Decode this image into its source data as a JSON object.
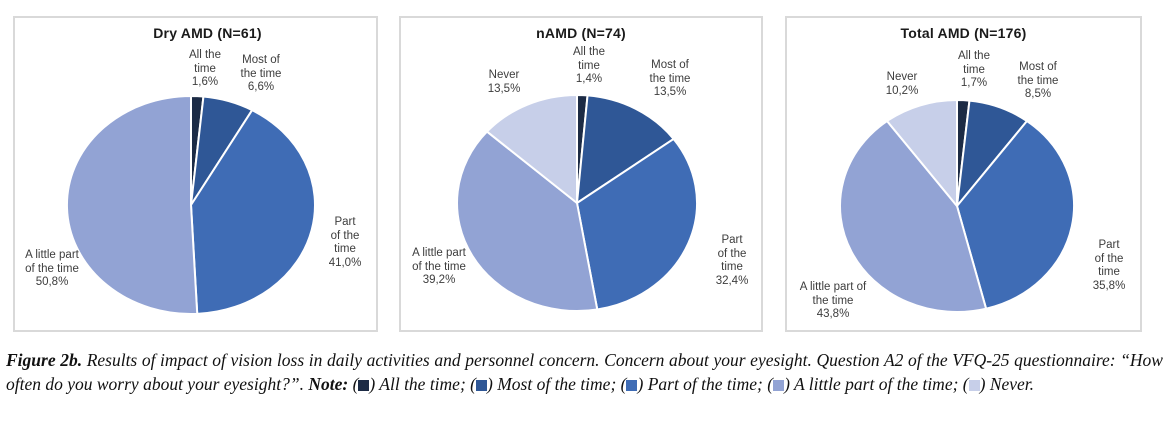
{
  "chart_data": [
    {
      "type": "pie",
      "title": "Dry AMD (N=61)",
      "unit": "%",
      "start_angle_deg": 0,
      "direction": "clockwise",
      "slices": [
        {
          "name": "All the time",
          "value": 1.6,
          "label": "All the\ntime\n1,6%",
          "color": "#1c2b45"
        },
        {
          "name": "Most of the time",
          "value": 6.6,
          "label": "Most of\nthe time\n6,6%",
          "color": "#2f5796"
        },
        {
          "name": "Part of the time",
          "value": 41.0,
          "label": "Part of the\ntime\n41,0%",
          "color": "#3f6cb5"
        },
        {
          "name": "A little part of the time",
          "value": 50.8,
          "label": "A little part\nof the time\n50,8%",
          "color": "#92a3d4"
        }
      ]
    },
    {
      "type": "pie",
      "title": "nAMD (N=74)",
      "unit": "%",
      "start_angle_deg": 0,
      "direction": "clockwise",
      "slices": [
        {
          "name": "All the time",
          "value": 1.4,
          "label": "All the\ntime\n1,4%",
          "color": "#1c2b45"
        },
        {
          "name": "Most of the time",
          "value": 13.5,
          "label": "Most of\nthe time\n13,5%",
          "color": "#2f5796"
        },
        {
          "name": "Part of the time",
          "value": 32.4,
          "label": "Part of the\ntime\n32,4%",
          "color": "#3f6cb5"
        },
        {
          "name": "A little part of the time",
          "value": 39.2,
          "label": "A little part\nof the time\n39,2%",
          "color": "#92a3d4"
        },
        {
          "name": "Never",
          "value": 13.5,
          "label": "Never\n13,5%",
          "color": "#c7cfe9"
        }
      ]
    },
    {
      "type": "pie",
      "title": "Total AMD (N=176)",
      "unit": "%",
      "start_angle_deg": 0,
      "direction": "clockwise",
      "slices": [
        {
          "name": "All the time",
          "value": 1.7,
          "label": "All the\ntime\n1,7%",
          "color": "#1c2b45"
        },
        {
          "name": "Most of the time",
          "value": 8.5,
          "label": "Most of\nthe time\n8,5%",
          "color": "#2f5796"
        },
        {
          "name": "Part of the time",
          "value": 35.8,
          "label": "Part of the\ntime\n35,8%",
          "color": "#3f6cb5"
        },
        {
          "name": "A little part of the time",
          "value": 43.8,
          "label": "A little part of\nthe time\n43,8%",
          "color": "#92a3d4"
        },
        {
          "name": "Never",
          "value": 10.2,
          "label": "Never\n10,2%",
          "color": "#c7cfe9"
        }
      ]
    }
  ],
  "caption": {
    "figure_label": "Figure 2b.",
    "body": "Results of impact of vision loss in daily activities and personnel concern. Concern about your eyesight. Question A2 of the VFQ-25 questionnaire: “How often do you worry about your eyesight?”.",
    "note_label": "Note:",
    "legend": [
      {
        "label": "All the time;",
        "color": "#1c2b45"
      },
      {
        "label": "Most of the time;",
        "color": "#2f5796"
      },
      {
        "label": "Part of the time;",
        "color": "#3f6cb5"
      },
      {
        "label": "A little part of the time;",
        "color": "#92a3d4"
      },
      {
        "label": "Never.",
        "color": "#c7cfe9"
      }
    ]
  }
}
